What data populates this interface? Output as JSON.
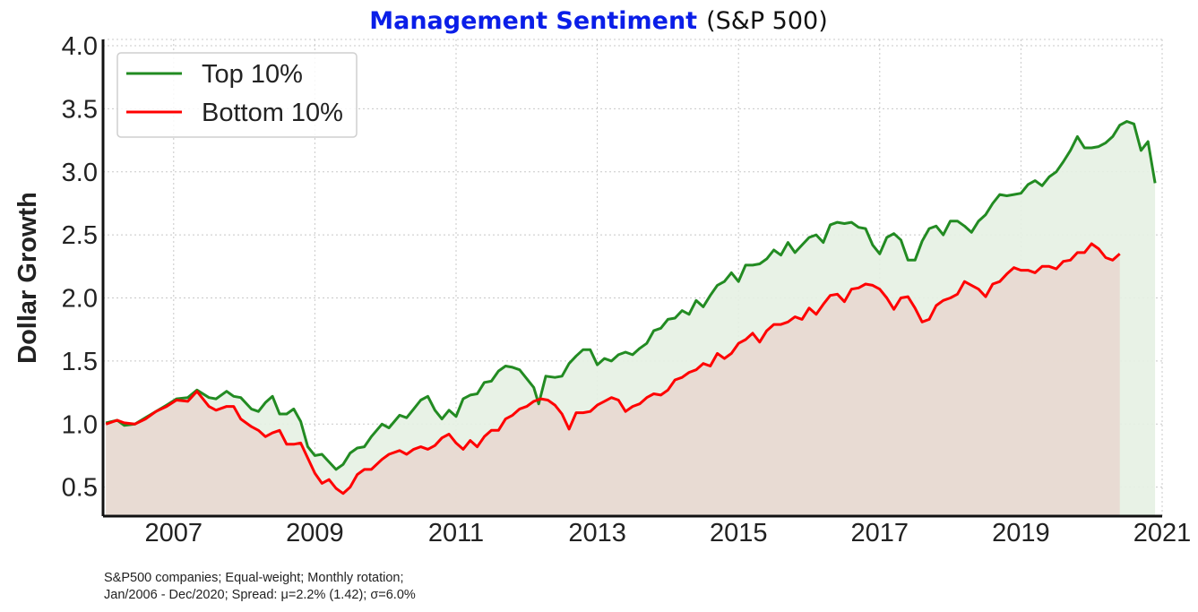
{
  "title": {
    "main": "Management Sentiment",
    "sub": "(S&P 500)",
    "main_color": "#0a1ee8"
  },
  "ylabel": "Dollar Growth",
  "footnote": {
    "line1": "S&P500 companies; Equal-weight; Monthly rotation;",
    "line2": "Jan/2006 - Dec/2020; Spread: μ=2.2% (1.42); σ=6.0%"
  },
  "chart_data": {
    "type": "line",
    "title": "Management Sentiment (S&P 500)",
    "ylabel": "Dollar Growth",
    "xlabel": "",
    "xlim": [
      2006.0,
      2021.0
    ],
    "ylim": [
      0.27,
      4.05
    ],
    "xticks": [
      2007,
      2009,
      2011,
      2013,
      2015,
      2017,
      2019,
      2021
    ],
    "yticks": [
      0.5,
      1.0,
      1.5,
      2.0,
      2.5,
      3.0,
      3.5,
      4.0
    ],
    "ytick_labels": [
      "0.5",
      "1.0",
      "1.5",
      "2.0",
      "2.5",
      "3.0",
      "3.5",
      "4.0"
    ],
    "grid": true,
    "legend": "top-left",
    "series": [
      {
        "name": "Top 10%",
        "color": "#228b22",
        "fill": "#e6f1e3",
        "points": [
          [
            2006.04,
            1.01
          ],
          [
            2006.2,
            1.03
          ],
          [
            2006.3,
            0.99
          ],
          [
            2006.45,
            1.0
          ],
          [
            2006.6,
            1.05
          ],
          [
            2006.75,
            1.1
          ],
          [
            2006.9,
            1.15
          ],
          [
            2007.04,
            1.2
          ],
          [
            2007.2,
            1.21
          ],
          [
            2007.33,
            1.27
          ],
          [
            2007.5,
            1.21
          ],
          [
            2007.6,
            1.2
          ],
          [
            2007.75,
            1.26
          ],
          [
            2007.85,
            1.22
          ],
          [
            2007.95,
            1.21
          ],
          [
            2008.1,
            1.12
          ],
          [
            2008.2,
            1.1
          ],
          [
            2008.3,
            1.17
          ],
          [
            2008.4,
            1.22
          ],
          [
            2008.5,
            1.08
          ],
          [
            2008.6,
            1.08
          ],
          [
            2008.7,
            1.12
          ],
          [
            2008.8,
            1.02
          ],
          [
            2008.9,
            0.82
          ],
          [
            2009.0,
            0.75
          ],
          [
            2009.1,
            0.76
          ],
          [
            2009.2,
            0.7
          ],
          [
            2009.3,
            0.64
          ],
          [
            2009.4,
            0.68
          ],
          [
            2009.5,
            0.77
          ],
          [
            2009.6,
            0.81
          ],
          [
            2009.7,
            0.82
          ],
          [
            2009.8,
            0.9
          ],
          [
            2009.95,
            1.0
          ],
          [
            2010.05,
            0.97
          ],
          [
            2010.2,
            1.07
          ],
          [
            2010.3,
            1.05
          ],
          [
            2010.4,
            1.12
          ],
          [
            2010.5,
            1.19
          ],
          [
            2010.6,
            1.22
          ],
          [
            2010.7,
            1.11
          ],
          [
            2010.8,
            1.04
          ],
          [
            2010.9,
            1.11
          ],
          [
            2011.0,
            1.06
          ],
          [
            2011.1,
            1.2
          ],
          [
            2011.2,
            1.23
          ],
          [
            2011.3,
            1.24
          ],
          [
            2011.4,
            1.33
          ],
          [
            2011.5,
            1.34
          ],
          [
            2011.6,
            1.42
          ],
          [
            2011.7,
            1.46
          ],
          [
            2011.8,
            1.45
          ],
          [
            2011.9,
            1.43
          ],
          [
            2012.0,
            1.36
          ],
          [
            2012.1,
            1.29
          ],
          [
            2012.17,
            1.16
          ],
          [
            2012.27,
            1.38
          ],
          [
            2012.4,
            1.37
          ],
          [
            2012.5,
            1.38
          ],
          [
            2012.6,
            1.48
          ],
          [
            2012.7,
            1.54
          ],
          [
            2012.8,
            1.59
          ],
          [
            2012.9,
            1.59
          ],
          [
            2013.0,
            1.47
          ],
          [
            2013.1,
            1.52
          ],
          [
            2013.2,
            1.5
          ],
          [
            2013.3,
            1.55
          ],
          [
            2013.4,
            1.57
          ],
          [
            2013.5,
            1.55
          ],
          [
            2013.6,
            1.6
          ],
          [
            2013.7,
            1.64
          ],
          [
            2013.8,
            1.74
          ],
          [
            2013.9,
            1.76
          ],
          [
            2014.0,
            1.83
          ],
          [
            2014.1,
            1.84
          ],
          [
            2014.2,
            1.9
          ],
          [
            2014.3,
            1.87
          ],
          [
            2014.4,
            1.98
          ],
          [
            2014.5,
            1.93
          ],
          [
            2014.6,
            2.02
          ],
          [
            2014.7,
            2.1
          ],
          [
            2014.8,
            2.13
          ],
          [
            2014.9,
            2.2
          ],
          [
            2015.0,
            2.13
          ],
          [
            2015.1,
            2.26
          ],
          [
            2015.2,
            2.26
          ],
          [
            2015.3,
            2.27
          ],
          [
            2015.4,
            2.31
          ],
          [
            2015.5,
            2.38
          ],
          [
            2015.6,
            2.34
          ],
          [
            2015.7,
            2.44
          ],
          [
            2015.8,
            2.36
          ],
          [
            2015.9,
            2.42
          ],
          [
            2016.0,
            2.48
          ],
          [
            2016.1,
            2.5
          ],
          [
            2016.2,
            2.44
          ],
          [
            2016.3,
            2.58
          ],
          [
            2016.4,
            2.6
          ],
          [
            2016.5,
            2.59
          ],
          [
            2016.6,
            2.6
          ],
          [
            2016.7,
            2.56
          ],
          [
            2016.8,
            2.55
          ],
          [
            2016.9,
            2.42
          ],
          [
            2017.0,
            2.35
          ],
          [
            2017.1,
            2.48
          ],
          [
            2017.2,
            2.51
          ],
          [
            2017.3,
            2.46
          ],
          [
            2017.4,
            2.3
          ],
          [
            2017.5,
            2.3
          ],
          [
            2017.6,
            2.45
          ],
          [
            2017.7,
            2.55
          ],
          [
            2017.8,
            2.57
          ],
          [
            2017.9,
            2.5
          ],
          [
            2018.0,
            2.61
          ],
          [
            2018.1,
            2.61
          ],
          [
            2018.2,
            2.57
          ],
          [
            2018.3,
            2.52
          ],
          [
            2018.4,
            2.61
          ],
          [
            2018.5,
            2.66
          ],
          [
            2018.6,
            2.75
          ],
          [
            2018.7,
            2.82
          ],
          [
            2018.8,
            2.81
          ],
          [
            2018.9,
            2.82
          ],
          [
            2019.0,
            2.83
          ],
          [
            2019.1,
            2.9
          ],
          [
            2019.2,
            2.93
          ],
          [
            2019.3,
            2.89
          ],
          [
            2019.4,
            2.96
          ],
          [
            2019.5,
            3.0
          ],
          [
            2019.6,
            3.08
          ],
          [
            2019.7,
            3.17
          ],
          [
            2019.8,
            3.28
          ],
          [
            2019.9,
            3.19
          ],
          [
            2020.0,
            3.19
          ],
          [
            2020.1,
            3.2
          ],
          [
            2020.2,
            3.23
          ],
          [
            2020.3,
            3.28
          ],
          [
            2020.4,
            3.37
          ],
          [
            2020.5,
            3.4
          ],
          [
            2020.6,
            3.38
          ],
          [
            2020.7,
            3.17
          ],
          [
            2020.8,
            3.24
          ],
          [
            2020.9,
            2.91
          ]
        ]
      },
      {
        "name": "Bottom 10%",
        "color": "#ff0000",
        "fill": "#e8d8d0",
        "points": [
          [
            2006.04,
            1.0
          ],
          [
            2006.2,
            1.03
          ],
          [
            2006.3,
            1.01
          ],
          [
            2006.45,
            1.0
          ],
          [
            2006.6,
            1.04
          ],
          [
            2006.75,
            1.1
          ],
          [
            2006.9,
            1.14
          ],
          [
            2007.04,
            1.19
          ],
          [
            2007.2,
            1.18
          ],
          [
            2007.33,
            1.26
          ],
          [
            2007.5,
            1.14
          ],
          [
            2007.6,
            1.11
          ],
          [
            2007.75,
            1.14
          ],
          [
            2007.85,
            1.14
          ],
          [
            2007.95,
            1.04
          ],
          [
            2008.1,
            0.98
          ],
          [
            2008.2,
            0.95
          ],
          [
            2008.3,
            0.9
          ],
          [
            2008.4,
            0.93
          ],
          [
            2008.5,
            0.95
          ],
          [
            2008.6,
            0.84
          ],
          [
            2008.7,
            0.84
          ],
          [
            2008.8,
            0.85
          ],
          [
            2008.9,
            0.73
          ],
          [
            2009.0,
            0.61
          ],
          [
            2009.1,
            0.53
          ],
          [
            2009.2,
            0.56
          ],
          [
            2009.3,
            0.49
          ],
          [
            2009.4,
            0.45
          ],
          [
            2009.5,
            0.5
          ],
          [
            2009.6,
            0.6
          ],
          [
            2009.7,
            0.64
          ],
          [
            2009.8,
            0.64
          ],
          [
            2009.95,
            0.72
          ],
          [
            2010.05,
            0.76
          ],
          [
            2010.2,
            0.79
          ],
          [
            2010.3,
            0.76
          ],
          [
            2010.4,
            0.8
          ],
          [
            2010.5,
            0.82
          ],
          [
            2010.6,
            0.8
          ],
          [
            2010.7,
            0.83
          ],
          [
            2010.8,
            0.89
          ],
          [
            2010.9,
            0.92
          ],
          [
            2011.0,
            0.85
          ],
          [
            2011.1,
            0.8
          ],
          [
            2011.2,
            0.87
          ],
          [
            2011.3,
            0.82
          ],
          [
            2011.4,
            0.9
          ],
          [
            2011.5,
            0.95
          ],
          [
            2011.6,
            0.95
          ],
          [
            2011.7,
            1.04
          ],
          [
            2011.8,
            1.07
          ],
          [
            2011.9,
            1.12
          ],
          [
            2012.0,
            1.14
          ],
          [
            2012.1,
            1.18
          ],
          [
            2012.2,
            1.2
          ],
          [
            2012.3,
            1.19
          ],
          [
            2012.4,
            1.15
          ],
          [
            2012.5,
            1.08
          ],
          [
            2012.6,
            0.96
          ],
          [
            2012.7,
            1.09
          ],
          [
            2012.8,
            1.09
          ],
          [
            2012.9,
            1.1
          ],
          [
            2013.0,
            1.15
          ],
          [
            2013.1,
            1.18
          ],
          [
            2013.2,
            1.21
          ],
          [
            2013.3,
            1.19
          ],
          [
            2013.4,
            1.1
          ],
          [
            2013.5,
            1.14
          ],
          [
            2013.6,
            1.16
          ],
          [
            2013.7,
            1.21
          ],
          [
            2013.8,
            1.24
          ],
          [
            2013.9,
            1.23
          ],
          [
            2014.0,
            1.27
          ],
          [
            2014.1,
            1.35
          ],
          [
            2014.2,
            1.37
          ],
          [
            2014.3,
            1.41
          ],
          [
            2014.4,
            1.43
          ],
          [
            2014.5,
            1.48
          ],
          [
            2014.6,
            1.46
          ],
          [
            2014.7,
            1.56
          ],
          [
            2014.8,
            1.52
          ],
          [
            2014.9,
            1.56
          ],
          [
            2015.0,
            1.64
          ],
          [
            2015.1,
            1.67
          ],
          [
            2015.2,
            1.72
          ],
          [
            2015.3,
            1.65
          ],
          [
            2015.4,
            1.74
          ],
          [
            2015.5,
            1.79
          ],
          [
            2015.6,
            1.79
          ],
          [
            2015.7,
            1.81
          ],
          [
            2015.8,
            1.85
          ],
          [
            2015.9,
            1.83
          ],
          [
            2016.0,
            1.92
          ],
          [
            2016.1,
            1.87
          ],
          [
            2016.2,
            1.95
          ],
          [
            2016.3,
            2.02
          ],
          [
            2016.4,
            2.03
          ],
          [
            2016.5,
            1.97
          ],
          [
            2016.6,
            2.07
          ],
          [
            2016.7,
            2.08
          ],
          [
            2016.8,
            2.11
          ],
          [
            2016.9,
            2.1
          ],
          [
            2017.0,
            2.07
          ],
          [
            2017.1,
            2.0
          ],
          [
            2017.2,
            1.91
          ],
          [
            2017.3,
            2.0
          ],
          [
            2017.4,
            2.01
          ],
          [
            2017.5,
            1.92
          ],
          [
            2017.6,
            1.81
          ],
          [
            2017.7,
            1.83
          ],
          [
            2017.8,
            1.94
          ],
          [
            2017.9,
            1.98
          ],
          [
            2018.0,
            2.0
          ],
          [
            2018.1,
            2.03
          ],
          [
            2018.2,
            2.13
          ],
          [
            2018.3,
            2.1
          ],
          [
            2018.4,
            2.07
          ],
          [
            2018.5,
            2.01
          ],
          [
            2018.6,
            2.11
          ],
          [
            2018.7,
            2.13
          ],
          [
            2018.8,
            2.19
          ],
          [
            2018.9,
            2.24
          ],
          [
            2019.0,
            2.22
          ],
          [
            2019.1,
            2.22
          ],
          [
            2019.2,
            2.2
          ],
          [
            2019.3,
            2.25
          ],
          [
            2019.4,
            2.25
          ],
          [
            2019.5,
            2.23
          ],
          [
            2019.6,
            2.29
          ],
          [
            2019.7,
            2.3
          ],
          [
            2019.8,
            2.36
          ],
          [
            2019.9,
            2.36
          ],
          [
            2020.0,
            2.43
          ],
          [
            2020.1,
            2.39
          ],
          [
            2020.2,
            2.32
          ],
          [
            2020.3,
            2.3
          ],
          [
            2020.4,
            2.35
          ]
        ]
      }
    ]
  }
}
